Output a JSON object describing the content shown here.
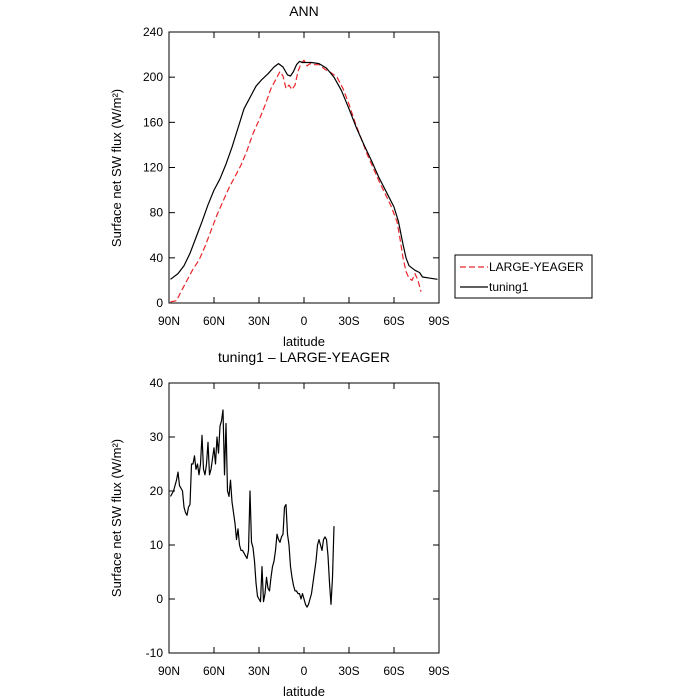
{
  "chart_data": [
    {
      "type": "line",
      "title": "ANN",
      "xlabel": "latitude",
      "ylabel": "Surface net SW flux (W/m²)",
      "xlim": [
        90,
        -90
      ],
      "ylim": [
        0,
        240
      ],
      "x_ticks": [
        {
          "value": 90,
          "label": "90N"
        },
        {
          "value": 60,
          "label": "60N"
        },
        {
          "value": 30,
          "label": "30N"
        },
        {
          "value": 0,
          "label": "0"
        },
        {
          "value": -30,
          "label": "30S"
        },
        {
          "value": -60,
          "label": "60S"
        },
        {
          "value": -90,
          "label": "90S"
        }
      ],
      "y_ticks": [
        0,
        40,
        80,
        120,
        160,
        200,
        240
      ],
      "legend_position": "right",
      "grid": false,
      "series": [
        {
          "name": "LARGE-YEAGER",
          "color": "#e8262a",
          "dash": "dashed",
          "points": [
            [
              89,
              1
            ],
            [
              85,
              2
            ],
            [
              82,
              10
            ],
            [
              78,
              20
            ],
            [
              74,
              30
            ],
            [
              70,
              38
            ],
            [
              66,
              50
            ],
            [
              62,
              64
            ],
            [
              58,
              78
            ],
            [
              54,
              90
            ],
            [
              50,
              102
            ],
            [
              46,
              112
            ],
            [
              42,
              122
            ],
            [
              38,
              135
            ],
            [
              34,
              150
            ],
            [
              30,
              162
            ],
            [
              26,
              175
            ],
            [
              22,
              190
            ],
            [
              18,
              200
            ],
            [
              16,
              205
            ],
            [
              14,
              201
            ],
            [
              12,
              190
            ],
            [
              10,
              193
            ],
            [
              8,
              189
            ],
            [
              6,
              193
            ],
            [
              4,
              205
            ],
            [
              2,
              212
            ],
            [
              0,
              215
            ],
            [
              -2,
              210
            ],
            [
              -4,
              212
            ],
            [
              -6,
              211
            ],
            [
              -10,
              211
            ],
            [
              -14,
              207
            ],
            [
              -18,
              204
            ],
            [
              -22,
              200
            ],
            [
              -26,
              190
            ],
            [
              -30,
              176
            ],
            [
              -34,
              160
            ],
            [
              -38,
              146
            ],
            [
              -42,
              132
            ],
            [
              -46,
              120
            ],
            [
              -50,
              108
            ],
            [
              -54,
              97
            ],
            [
              -58,
              86
            ],
            [
              -62,
              72
            ],
            [
              -64,
              57
            ],
            [
              -66,
              40
            ],
            [
              -68,
              28
            ],
            [
              -70,
              22
            ],
            [
              -72,
              20
            ],
            [
              -74,
              26
            ],
            [
              -76,
              20
            ],
            [
              -78,
              10
            ]
          ]
        },
        {
          "name": "tuning1",
          "color": "#000000",
          "dash": "solid",
          "points": [
            [
              89,
              21
            ],
            [
              84,
              26
            ],
            [
              80,
              33
            ],
            [
              76,
              44
            ],
            [
              72,
              58
            ],
            [
              68,
              72
            ],
            [
              64,
              87
            ],
            [
              60,
              100
            ],
            [
              56,
              110
            ],
            [
              52,
              123
            ],
            [
              48,
              138
            ],
            [
              44,
              155
            ],
            [
              40,
              172
            ],
            [
              36,
              182
            ],
            [
              32,
              192
            ],
            [
              28,
              198
            ],
            [
              24,
              203
            ],
            [
              20,
              209
            ],
            [
              17,
              212
            ],
            [
              14,
              209
            ],
            [
              11,
              202
            ],
            [
              9,
              201
            ],
            [
              7,
              205
            ],
            [
              5,
              211
            ],
            [
              3,
              214
            ],
            [
              1,
              213
            ],
            [
              -1,
              213
            ],
            [
              -5,
              213
            ],
            [
              -10,
              212
            ],
            [
              -15,
              208
            ],
            [
              -20,
              200
            ],
            [
              -25,
              188
            ],
            [
              -30,
              172
            ],
            [
              -35,
              155
            ],
            [
              -40,
              140
            ],
            [
              -45,
              126
            ],
            [
              -50,
              111
            ],
            [
              -55,
              98
            ],
            [
              -60,
              85
            ],
            [
              -63,
              72
            ],
            [
              -66,
              52
            ],
            [
              -68,
              40
            ],
            [
              -70,
              33
            ],
            [
              -74,
              29
            ],
            [
              -77,
              27
            ],
            [
              -79,
              23
            ],
            [
              -84,
              22
            ],
            [
              -89,
              21
            ]
          ]
        }
      ]
    },
    {
      "type": "line",
      "title": "tuning1 – LARGE-YEAGER",
      "xlabel": "latitude",
      "ylabel": "Surface net SW flux (W/m²)",
      "xlim": [
        90,
        -90
      ],
      "ylim": [
        -10,
        40
      ],
      "x_ticks": [
        {
          "value": 90,
          "label": "90N"
        },
        {
          "value": 60,
          "label": "60N"
        },
        {
          "value": 30,
          "label": "30N"
        },
        {
          "value": 0,
          "label": "0"
        },
        {
          "value": -30,
          "label": "30S"
        },
        {
          "value": -60,
          "label": "60S"
        },
        {
          "value": -90,
          "label": "90S"
        }
      ],
      "y_ticks": [
        -10,
        0,
        10,
        20,
        30,
        40
      ],
      "grid": false,
      "series": [
        {
          "color": "#000000",
          "dash": "solid",
          "points": [
            [
              89,
              19
            ],
            [
              87,
              20
            ],
            [
              85,
              22
            ],
            [
              84,
              23.5
            ],
            [
              83,
              21
            ],
            [
              81,
              20
            ],
            [
              80,
              17
            ],
            [
              79,
              16
            ],
            [
              78,
              15.5
            ],
            [
              77,
              17
            ],
            [
              76,
              17.5
            ],
            [
              75,
              25
            ],
            [
              74,
              25
            ],
            [
              73,
              26.5
            ],
            [
              72,
              24
            ],
            [
              71,
              25
            ],
            [
              70,
              23
            ],
            [
              69,
              25
            ],
            [
              68,
              30.3
            ],
            [
              67,
              24
            ],
            [
              66,
              23
            ],
            [
              65,
              25
            ],
            [
              64,
              29
            ],
            [
              63,
              23
            ],
            [
              62,
              24
            ],
            [
              61,
              26
            ],
            [
              60,
              28
            ],
            [
              59,
              25
            ],
            [
              58,
              30
            ],
            [
              57,
              27
            ],
            [
              56,
              32
            ],
            [
              55,
              33
            ],
            [
              54,
              35
            ],
            [
              53,
              23
            ],
            [
              52,
              32.5
            ],
            [
              51,
              20
            ],
            [
              50,
              19
            ],
            [
              49,
              22
            ],
            [
              48,
              18
            ],
            [
              47,
              16
            ],
            [
              46,
              14
            ],
            [
              45,
              11
            ],
            [
              44,
              13
            ],
            [
              43,
              10
            ],
            [
              42,
              9
            ],
            [
              41,
              9
            ],
            [
              40,
              8.5
            ],
            [
              39,
              8
            ],
            [
              38,
              7.5
            ],
            [
              37,
              9
            ],
            [
              36,
              20
            ],
            [
              35,
              10.5
            ],
            [
              34,
              9.5
            ],
            [
              33,
              7
            ],
            [
              32,
              3
            ],
            [
              31,
              0.5
            ],
            [
              30,
              0
            ],
            [
              29,
              -0.5
            ],
            [
              28,
              6
            ],
            [
              27,
              -0.5
            ],
            [
              26,
              1
            ],
            [
              25,
              4
            ],
            [
              24,
              2
            ],
            [
              23,
              1.5
            ],
            [
              22,
              4
            ],
            [
              21,
              6
            ],
            [
              20,
              7
            ],
            [
              19,
              9
            ],
            [
              18,
              12
            ],
            [
              17,
              11
            ],
            [
              16,
              10.5
            ],
            [
              15,
              11.5
            ],
            [
              14,
              12
            ],
            [
              13,
              17
            ],
            [
              12,
              17.5
            ],
            [
              11,
              12
            ],
            [
              10,
              10
            ],
            [
              9,
              6
            ],
            [
              8,
              4
            ],
            [
              7,
              2.5
            ],
            [
              6,
              1.5
            ],
            [
              5,
              1.5
            ],
            [
              4,
              1
            ],
            [
              3,
              1
            ],
            [
              2,
              0
            ],
            [
              1,
              1
            ],
            [
              0,
              0
            ],
            [
              -1,
              -1
            ],
            [
              -2,
              -1.5
            ],
            [
              -3,
              -1
            ],
            [
              -4,
              0
            ],
            [
              -5,
              1
            ],
            [
              -6,
              3
            ],
            [
              -7,
              5
            ],
            [
              -8,
              7
            ],
            [
              -9,
              10
            ],
            [
              -10,
              11
            ],
            [
              -11,
              10
            ],
            [
              -12,
              9
            ],
            [
              -13,
              11
            ],
            [
              -14,
              11.5
            ],
            [
              -15,
              11
            ],
            [
              -16,
              8
            ],
            [
              -17,
              3
            ],
            [
              -18,
              -1
            ],
            [
              -19,
              4
            ],
            [
              -20,
              13.5
            ]
          ]
        }
      ]
    }
  ]
}
